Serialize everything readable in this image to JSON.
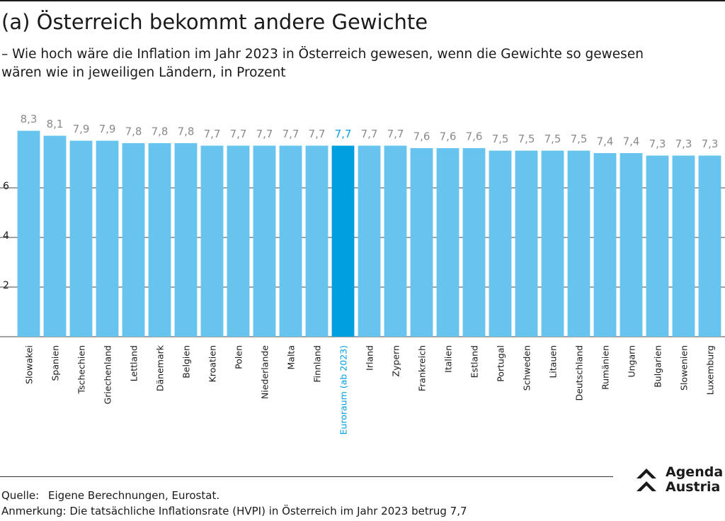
{
  "chart_data": {
    "type": "bar",
    "title": "(a) Österreich bekommt andere Gewichte",
    "subtitle": [
      "– Wie hoch wäre die Inflation im Jahr 2023 in Österreich gewesen, wenn die Gewichte so gewesen",
      "wären wie in jeweiligen Ländern, in Prozent"
    ],
    "categories": [
      "Slowakei",
      "Spanien",
      "Tschechien",
      "Griechenland",
      "Lettland",
      "Dänemark",
      "Belgien",
      "Kroatien",
      "Polen",
      "Niederlande",
      "Malta",
      "Finnland",
      "Euroraum (ab 2023)",
      "Irland",
      "Zypern",
      "Frankreich",
      "Italien",
      "Estland",
      "Portugal",
      "Schweden",
      "Litauen",
      "Deutschland",
      "Rumänien",
      "Ungarn",
      "Bulgarien",
      "Slowenien",
      "Luxemburg"
    ],
    "values": [
      8.3,
      8.1,
      7.9,
      7.9,
      7.8,
      7.8,
      7.8,
      7.7,
      7.7,
      7.7,
      7.7,
      7.7,
      7.7,
      7.7,
      7.7,
      7.6,
      7.6,
      7.6,
      7.5,
      7.5,
      7.5,
      7.5,
      7.4,
      7.4,
      7.3,
      7.3,
      7.3
    ],
    "value_labels": [
      "8,3",
      "8,1",
      "7,9",
      "7,9",
      "7,8",
      "7,8",
      "7,8",
      "7,7",
      "7,7",
      "7,7",
      "7,7",
      "7,7",
      "7,7",
      "7,7",
      "7,7",
      "7,6",
      "7,6",
      "7,6",
      "7,5",
      "7,5",
      "7,5",
      "7,5",
      "7,4",
      "7,4",
      "7,3",
      "7,3",
      "7,3"
    ],
    "color": "#66c4ee",
    "highlight": {
      "category": "Euroraum (ab 2023)",
      "color": "#009fe0"
    },
    "ylim": [
      0,
      9
    ],
    "yticks": [
      2,
      4,
      6
    ],
    "grid": true
  },
  "footer": {
    "source_label": "Quelle:",
    "source": "Eigene Berechnungen, Eurostat.",
    "note": "Anmerkung: Die tatsächliche Inflationsrate (HVPI) in Österreich im Jahr 2023 betrug 7,7"
  },
  "logo": {
    "line1": "Agenda",
    "line2": "Austria"
  }
}
